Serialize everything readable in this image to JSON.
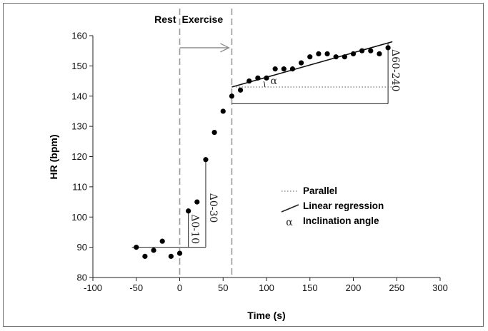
{
  "chart_data": {
    "type": "scatter",
    "title": "",
    "xlabel": "Time (s)",
    "ylabel": "HR (bpm)",
    "xlim": [
      -100,
      300
    ],
    "ylim": [
      80,
      160
    ],
    "x_ticks": [
      -100,
      -50,
      0,
      50,
      100,
      150,
      200,
      250,
      300
    ],
    "y_ticks": [
      80,
      90,
      100,
      110,
      120,
      130,
      140,
      150,
      160
    ],
    "grid": false,
    "phase_labels": {
      "rest": "Rest",
      "exercise": "Exercise"
    },
    "phase_boundaries": [
      0,
      60
    ],
    "points": [
      {
        "x": -50,
        "y": 90
      },
      {
        "x": -40,
        "y": 87
      },
      {
        "x": -30,
        "y": 89
      },
      {
        "x": -20,
        "y": 92
      },
      {
        "x": -10,
        "y": 87
      },
      {
        "x": 0,
        "y": 88
      },
      {
        "x": 10,
        "y": 102
      },
      {
        "x": 20,
        "y": 105
      },
      {
        "x": 30,
        "y": 119
      },
      {
        "x": 40,
        "y": 128
      },
      {
        "x": 50,
        "y": 135
      },
      {
        "x": 60,
        "y": 140
      },
      {
        "x": 70,
        "y": 142
      },
      {
        "x": 80,
        "y": 145
      },
      {
        "x": 90,
        "y": 146
      },
      {
        "x": 100,
        "y": 146
      },
      {
        "x": 110,
        "y": 149
      },
      {
        "x": 120,
        "y": 149
      },
      {
        "x": 130,
        "y": 149
      },
      {
        "x": 140,
        "y": 151
      },
      {
        "x": 150,
        "y": 153
      },
      {
        "x": 160,
        "y": 154
      },
      {
        "x": 170,
        "y": 154
      },
      {
        "x": 180,
        "y": 153
      },
      {
        "x": 190,
        "y": 153
      },
      {
        "x": 200,
        "y": 154
      },
      {
        "x": 210,
        "y": 155
      },
      {
        "x": 220,
        "y": 155
      },
      {
        "x": 230,
        "y": 154
      },
      {
        "x": 240,
        "y": 156
      }
    ],
    "baseline": {
      "x": [
        -55,
        30
      ],
      "y": 90
    },
    "delta_0_10": {
      "label": "Δ0-10",
      "x": 10,
      "y": [
        90,
        102
      ]
    },
    "delta_0_30": {
      "label": "Δ0-30",
      "x": 30,
      "y": [
        90,
        119
      ]
    },
    "delta_60_240": {
      "label": "Δ60-240",
      "x": 240,
      "y": [
        137.5,
        157.5
      ]
    },
    "steady_baseline": {
      "x": [
        60,
        240
      ],
      "y": 137.5
    },
    "regression_line": {
      "x": [
        60,
        245
      ],
      "y": [
        143,
        158
      ]
    },
    "parallel_line": {
      "x": [
        65,
        245
      ],
      "y": 143
    },
    "angle_label": "α",
    "transition_arrow": {
      "x": [
        0,
        60
      ],
      "y": 156
    },
    "legend": [
      {
        "style": "dotted",
        "label": "Parallel"
      },
      {
        "style": "solid",
        "label": "Linear regression"
      },
      {
        "style": "symbol",
        "symbol": "α",
        "label": "Inclination angle"
      }
    ]
  }
}
